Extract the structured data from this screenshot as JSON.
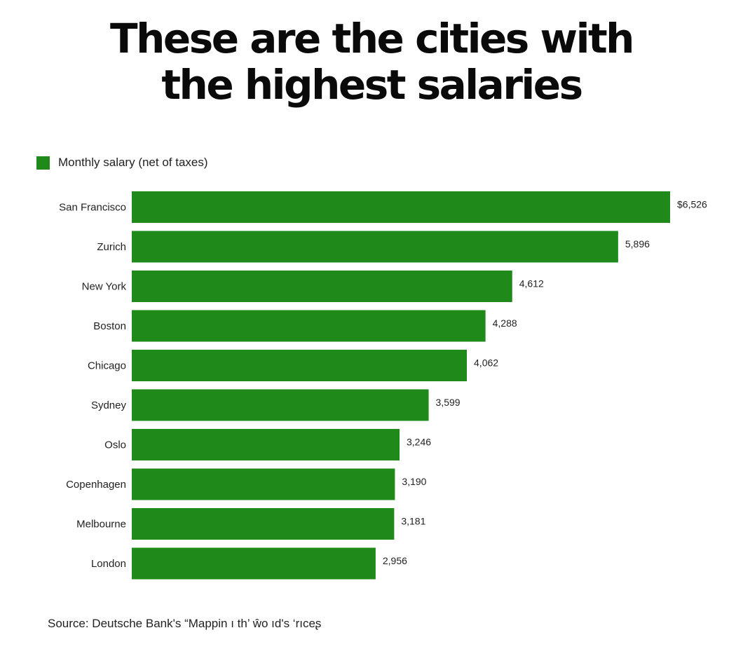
{
  "title_line1": "These are the cities with",
  "title_line2": "the highest salaries",
  "source": "Source: Deutsche Bank's “Mappin ı th’ ŵo ıd's ‘rıceʂ",
  "colors": {
    "bar": "#1f8a1a",
    "text": "#222222"
  },
  "chart_data": {
    "type": "bar",
    "orientation": "horizontal",
    "categories": [
      "San Francisco",
      "Zurich",
      "New York",
      "Boston",
      "Chicago",
      "Sydney",
      "Oslo",
      "Copenhagen",
      "Melbourne",
      "London"
    ],
    "series": [
      {
        "name": "Monthly salary (net of taxes)",
        "values": [
          6526,
          5896,
          4612,
          4288,
          4062,
          3599,
          3246,
          3190,
          3181,
          2956
        ]
      }
    ],
    "value_labels": [
      "$6,526",
      "5,896",
      "4,612",
      "4,288",
      "4,062",
      "3,599",
      "3,246",
      "3,190",
      "3,181",
      "2,956"
    ],
    "xlim": [
      0,
      6526
    ],
    "grid": false,
    "legend_position": "top-left"
  }
}
